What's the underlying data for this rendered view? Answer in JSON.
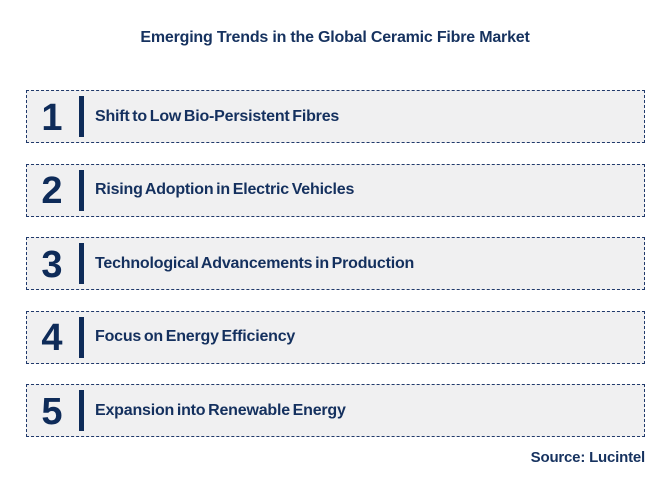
{
  "title": "Emerging Trends in the Global Ceramic Fibre Market",
  "trends": [
    {
      "number": "1",
      "label": "Shift to Low Bio-Persistent Fibres"
    },
    {
      "number": "2",
      "label": "Rising Adoption in Electric Vehicles"
    },
    {
      "number": "3",
      "label": "Technological Advancements in Production"
    },
    {
      "number": "4",
      "label": "Focus on Energy Efficiency"
    },
    {
      "number": "5",
      "label": "Expansion into Renewable Energy"
    }
  ],
  "source": "Source: Lucintel",
  "colors": {
    "navy": "#0E2B59",
    "title_text": "#16325F",
    "label_text": "#14305E",
    "row_background": "#F0F0F1",
    "row_border": "#20396B",
    "page_background": "#FFFFFF"
  }
}
